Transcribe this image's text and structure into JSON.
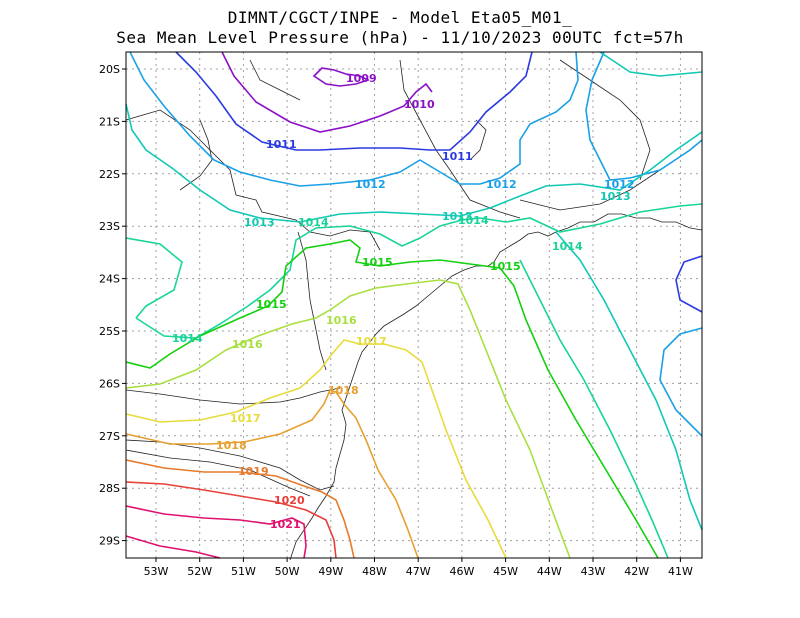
{
  "title": {
    "line1": "DIMNT/CGCT/INPE -  Model Eta05_M01_",
    "line2": "Sea Mean Level Pressure (hPa) - 11/10/2023 00UTC fct=57h"
  },
  "axes": {
    "lat_labels": [
      "20S",
      "21S",
      "22S",
      "23S",
      "24S",
      "25S",
      "26S",
      "27S",
      "28S",
      "29S"
    ],
    "lon_labels": [
      "53W",
      "52W",
      "51W",
      "50W",
      "49W",
      "48W",
      "47W",
      "46W",
      "45W",
      "44W",
      "43W",
      "42W",
      "41W"
    ]
  },
  "isobars": [
    {
      "value": "1009",
      "color": "#8a10c8"
    },
    {
      "value": "1010",
      "color": "#8a10c8"
    },
    {
      "value": "1011",
      "color": "#2a3ae0"
    },
    {
      "value": "1012",
      "color": "#1aa0e6"
    },
    {
      "value": "1013",
      "color": "#12c8b4"
    },
    {
      "value": "1014",
      "color": "#18d49a"
    },
    {
      "value": "1015",
      "color": "#14d010"
    },
    {
      "value": "1016",
      "color": "#a8e040"
    },
    {
      "value": "1017",
      "color": "#e6dc3c"
    },
    {
      "value": "1018",
      "color": "#e6a030"
    },
    {
      "value": "1019",
      "color": "#e87a2a"
    },
    {
      "value": "1020",
      "color": "#e8403a"
    },
    {
      "value": "1021",
      "color": "#e0106e"
    }
  ]
}
